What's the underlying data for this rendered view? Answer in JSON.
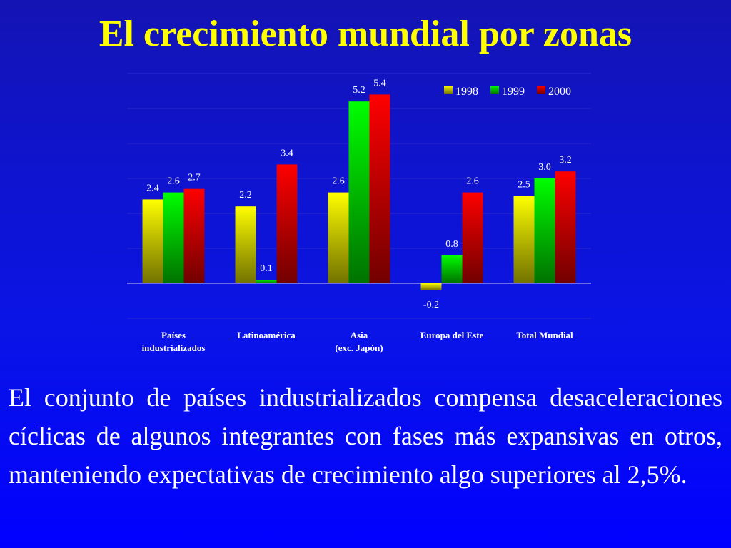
{
  "chart_data": {
    "type": "bar",
    "title": "El crecimiento mundial por zonas",
    "categories": [
      "Países\nindustrializados",
      "Latinoamérica",
      "Asia\n(exc. Japón)",
      "Europa del Este",
      "Total Mundial"
    ],
    "series": [
      {
        "name": "1998",
        "color": "#ffff00",
        "values": [
          2.4,
          2.2,
          2.6,
          -0.2,
          2.5
        ],
        "value_labels": [
          "2.4",
          "2.2",
          "2.6",
          "-0.2",
          "2.5"
        ]
      },
      {
        "name": "1999",
        "color": "#00ff00",
        "values": [
          2.6,
          0.1,
          5.2,
          0.8,
          3.0
        ],
        "value_labels": [
          "2.6",
          "0.1",
          "5.2",
          "0.8",
          "3.0"
        ]
      },
      {
        "name": "2000",
        "color": "#ff0000",
        "values": [
          2.7,
          3.4,
          5.4,
          2.6,
          3.2
        ],
        "value_labels": [
          "2.7",
          "3.4",
          "5.4",
          "2.6",
          "3.2"
        ]
      }
    ],
    "ylim": [
      -1,
      6
    ],
    "yticks": [
      -1,
      0,
      1,
      2,
      3,
      4,
      5,
      6
    ],
    "grid": true,
    "legend": "top-right"
  },
  "body": "El conjunto de países industrializados compensa desaceleraciones cíclicas de algunos integrantes con fases más expansivas en otros, manteniendo expectativas de crecimiento algo superiores al 2,5%."
}
